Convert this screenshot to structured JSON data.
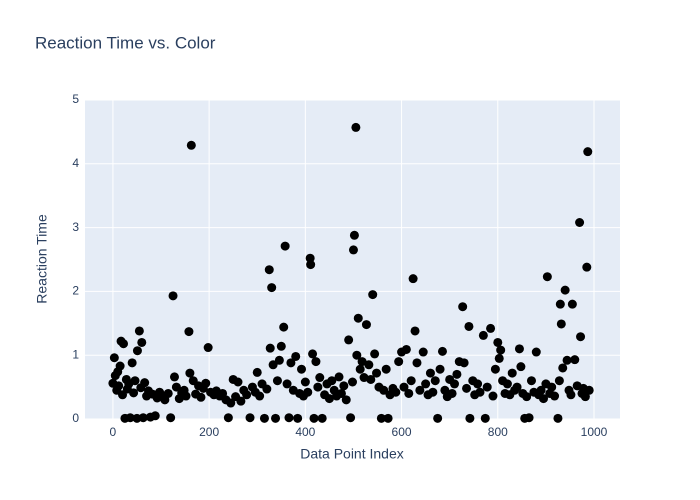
{
  "chart_data": {
    "type": "scatter",
    "title": "Reaction Time vs. Color",
    "x_label": "Data Point Index",
    "y_label": "Reaction Time",
    "xlim": [
      -58,
      1054
    ],
    "ylim": [
      0,
      5
    ],
    "xticks": [
      0,
      200,
      400,
      600,
      800,
      1000
    ],
    "yticks": [
      0,
      1,
      2,
      3,
      4,
      5
    ],
    "grid": true,
    "series": [
      {
        "color": "#000000",
        "x": [
          0,
          3,
          5,
          8,
          10,
          12,
          15,
          17,
          20,
          22,
          25,
          28,
          30,
          33,
          36,
          40,
          43,
          46,
          50,
          51,
          55,
          58,
          60,
          63,
          66,
          70,
          74,
          78,
          82,
          88,
          92,
          97,
          102,
          108,
          115,
          120,
          125,
          128,
          132,
          138,
          143,
          148,
          152,
          158,
          160,
          163,
          167,
          172,
          178,
          183,
          188,
          193,
          198,
          203,
          210,
          215,
          222,
          228,
          235,
          240,
          245,
          250,
          255,
          260,
          266,
          272,
          278,
          285,
          290,
          296,
          300,
          305,
          310,
          315,
          320,
          325,
          327,
          330,
          333,
          338,
          342,
          346,
          350,
          355,
          358,
          362,
          366,
          370,
          375,
          380,
          384,
          388,
          392,
          396,
          400,
          405,
          410,
          411,
          415,
          418,
          422,
          426,
          430,
          435,
          440,
          445,
          450,
          455,
          460,
          465,
          470,
          475,
          480,
          485,
          490,
          494,
          498,
          500,
          502,
          505,
          507,
          510,
          514,
          518,
          522,
          527,
          532,
          536,
          540,
          544,
          548,
          553,
          558,
          563,
          568,
          572,
          576,
          582,
          588,
          594,
          600,
          605,
          610,
          615,
          620,
          624,
          628,
          632,
          638,
          645,
          650,
          655,
          660,
          665,
          670,
          675,
          680,
          685,
          690,
          695,
          700,
          705,
          710,
          715,
          720,
          727,
          730,
          735,
          740,
          742,
          748,
          752,
          758,
          763,
          770,
          774,
          778,
          785,
          790,
          795,
          800,
          803,
          806,
          810,
          815,
          820,
          825,
          830,
          835,
          840,
          845,
          848,
          852,
          856,
          860,
          865,
          870,
          875,
          880,
          885,
          890,
          895,
          900,
          903,
          908,
          912,
          918,
          925,
          928,
          930,
          932,
          935,
          940,
          944,
          948,
          952,
          955,
          960,
          965,
          970,
          972,
          975,
          978,
          982,
          985,
          987,
          990
        ],
        "values": [
          0.56,
          0.96,
          0.68,
          0.45,
          0.74,
          0.52,
          0.83,
          1.22,
          0.38,
          1.18,
          0.01,
          0.62,
          0.47,
          0.55,
          0.02,
          0.88,
          0.41,
          0.6,
          0.01,
          1.07,
          1.38,
          0.49,
          1.2,
          0.02,
          0.57,
          0.36,
          0.44,
          0.03,
          0.39,
          0.05,
          0.33,
          0.42,
          0.37,
          0.3,
          0.4,
          0.02,
          1.93,
          0.66,
          0.5,
          0.32,
          0.41,
          0.45,
          0.36,
          1.37,
          0.72,
          4.29,
          0.6,
          0.39,
          0.52,
          0.34,
          0.48,
          0.56,
          1.12,
          0.42,
          0.38,
          0.44,
          0.36,
          0.4,
          0.3,
          0.02,
          0.25,
          0.62,
          0.35,
          0.58,
          0.28,
          0.45,
          0.38,
          0.02,
          0.5,
          0.42,
          0.73,
          0.36,
          0.55,
          0.01,
          0.47,
          2.34,
          1.11,
          2.06,
          0.85,
          0.01,
          0.6,
          0.92,
          1.14,
          1.44,
          2.71,
          0.55,
          0.02,
          0.88,
          0.45,
          0.98,
          0.01,
          0.4,
          0.78,
          0.36,
          0.58,
          0.42,
          2.52,
          2.42,
          1.02,
          0.01,
          0.9,
          0.5,
          0.65,
          0.01,
          0.38,
          0.55,
          0.32,
          0.6,
          0.45,
          0.36,
          0.66,
          0.4,
          0.52,
          0.3,
          1.24,
          0.02,
          0.58,
          2.65,
          2.88,
          4.57,
          1.0,
          1.58,
          0.78,
          0.9,
          0.65,
          1.48,
          0.85,
          0.62,
          1.95,
          1.02,
          0.72,
          0.5,
          0.01,
          0.45,
          0.78,
          0.01,
          0.38,
          0.48,
          0.42,
          0.9,
          1.05,
          0.5,
          1.09,
          0.4,
          0.6,
          2.2,
          1.38,
          0.88,
          0.45,
          1.05,
          0.55,
          0.38,
          0.72,
          0.42,
          0.6,
          0.01,
          0.78,
          1.06,
          0.45,
          0.35,
          0.62,
          0.4,
          0.55,
          0.7,
          0.9,
          1.76,
          0.88,
          0.48,
          1.45,
          0.01,
          0.6,
          0.38,
          0.55,
          0.42,
          1.31,
          0.01,
          0.5,
          1.42,
          0.36,
          0.78,
          1.2,
          0.95,
          1.08,
          0.6,
          0.4,
          0.55,
          0.38,
          0.72,
          0.45,
          0.5,
          1.1,
          0.82,
          0.4,
          0.01,
          0.35,
          0.02,
          0.6,
          0.42,
          1.05,
          0.38,
          0.45,
          0.32,
          0.55,
          2.23,
          0.4,
          0.5,
          0.36,
          0.01,
          0.6,
          1.8,
          1.49,
          0.8,
          2.02,
          0.92,
          0.45,
          0.38,
          1.8,
          0.93,
          0.52,
          3.08,
          1.29,
          0.4,
          0.48,
          0.35,
          2.38,
          4.19,
          0.45
        ]
      }
    ]
  }
}
